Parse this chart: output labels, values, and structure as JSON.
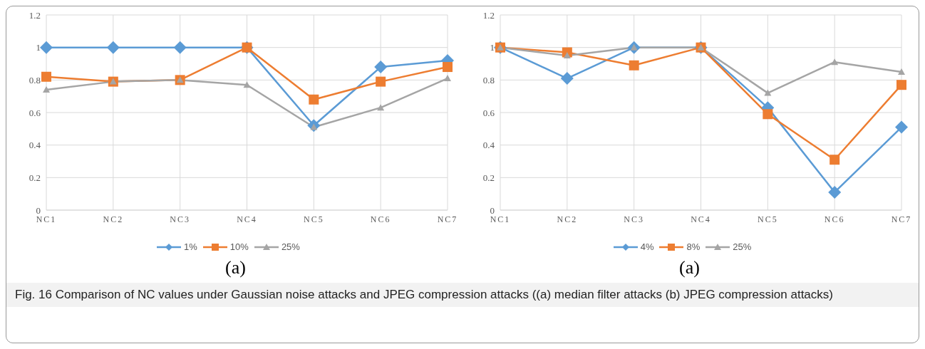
{
  "chart_data": [
    {
      "type": "line",
      "categories": [
        "NC1",
        "NC2",
        "NC3",
        "NC4",
        "NC5",
        "NC6",
        "NC7"
      ],
      "ylim": [
        0,
        1.2
      ],
      "yticks": [
        0,
        0.2,
        0.4,
        0.6,
        0.8,
        1,
        1.2
      ],
      "grid": true,
      "legend": "bottom",
      "annotations": [
        "(a)",
        "Fig. 16  Comparison of NC values under Gaussian noise attacks and JPEG compression attacks ((a) median filter attacks (b) JPEG compression attacks)"
      ],
      "series": [
        {
          "name": "1%",
          "color": "#5b9bd5",
          "marker": "diamond",
          "values": [
            1,
            1,
            1,
            1,
            0.52,
            0.88,
            0.92
          ]
        },
        {
          "name": "10%",
          "color": "#ed7d31",
          "marker": "square",
          "values": [
            0.82,
            0.79,
            0.8,
            1,
            0.68,
            0.79,
            0.88
          ]
        },
        {
          "name": "25%",
          "color": "#a5a5a5",
          "marker": "triangle",
          "values": [
            0.74,
            0.79,
            0.8,
            0.77,
            0.51,
            0.63,
            0.81
          ]
        }
      ]
    },
    {
      "type": "line",
      "categories": [
        "NC1",
        "NC2",
        "NC3",
        "NC4",
        "NC5",
        "NC6",
        "NC7"
      ],
      "ylim": [
        0,
        1.2
      ],
      "yticks": [
        0,
        0.2,
        0.4,
        0.6,
        0.8,
        1,
        1.2
      ],
      "grid": true,
      "legend": "bottom",
      "annotations": [
        "(a)"
      ],
      "series": [
        {
          "name": "4%",
          "color": "#5b9bd5",
          "marker": "diamond",
          "values": [
            1,
            0.81,
            1,
            1,
            0.63,
            0.11,
            0.51
          ]
        },
        {
          "name": "8%",
          "color": "#ed7d31",
          "marker": "square",
          "values": [
            1,
            0.97,
            0.89,
            1,
            0.59,
            0.31,
            0.77
          ]
        },
        {
          "name": "25%",
          "color": "#a5a5a5",
          "marker": "triangle",
          "values": [
            1,
            0.95,
            1,
            1,
            0.72,
            0.91,
            0.85
          ]
        }
      ]
    }
  ]
}
